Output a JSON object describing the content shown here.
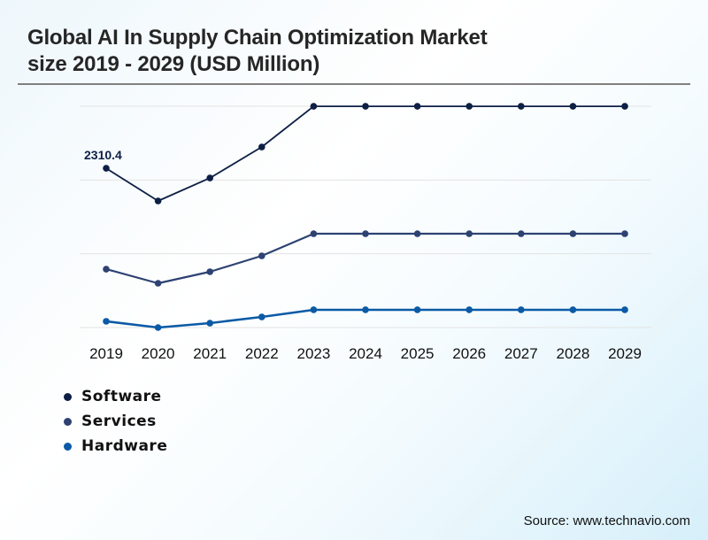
{
  "header": {
    "title_line1": "Global AI In Supply Chain Optimization Market",
    "title_line2": "size 2019 - 2029 (USD Million)"
  },
  "source": "Source: www.technavio.com",
  "chart_data": {
    "type": "line",
    "title": "Global AI In Supply Chain Optimization Market size 2019 - 2029 (USD Million)",
    "xlabel": "",
    "ylabel": "USD Million",
    "categories": [
      "2019",
      "2020",
      "2021",
      "2022",
      "2023",
      "2024",
      "2025",
      "2026",
      "2027",
      "2028",
      "2029"
    ],
    "ylim": [
      0,
      3210
    ],
    "grid": true,
    "legend_position": "bottom-left",
    "series": [
      {
        "name": "Software",
        "color": "#0d1f45",
        "values": [
          2310.4,
          1836,
          2169,
          2619,
          3209,
          3209,
          3209,
          3209,
          3209,
          3209,
          3209
        ]
      },
      {
        "name": "Services",
        "color": "#2e4272",
        "values": [
          847,
          642,
          809,
          1040,
          1361,
          1361,
          1361,
          1361,
          1361,
          1361,
          1361
        ]
      },
      {
        "name": "Hardware",
        "color": "#0b5aa6",
        "values": [
          90,
          0,
          64,
          154,
          257,
          257,
          257,
          257,
          257,
          257,
          257
        ]
      }
    ],
    "annotations": [
      {
        "series": "Software",
        "category": "2019",
        "label": "2310.4"
      }
    ]
  }
}
